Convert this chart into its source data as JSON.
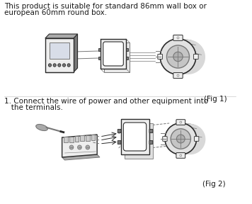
{
  "background_color": "#ffffff",
  "text1": "This product is suitable for standard 86mm wall box or",
  "text2": "european 60mm round box.",
  "fig1_label": "(Fig 1)",
  "text3": "1. Connect the wire of power and other equipment into",
  "text4": "   the terminals.",
  "fig2_label": "(Fig 2)",
  "fig_width": 3.56,
  "fig_height": 2.88,
  "dpi": 100,
  "font_size": 7.5,
  "label_font_size": 7.5,
  "text_color": "#1a1a1a",
  "line_color": "#2a2a2a",
  "gray1": "#aaaaaa",
  "gray2": "#777777",
  "gray3": "#444444",
  "fill_light": "#eeeeee",
  "fill_mid": "#cccccc",
  "fill_dark": "#999999",
  "white": "#ffffff"
}
